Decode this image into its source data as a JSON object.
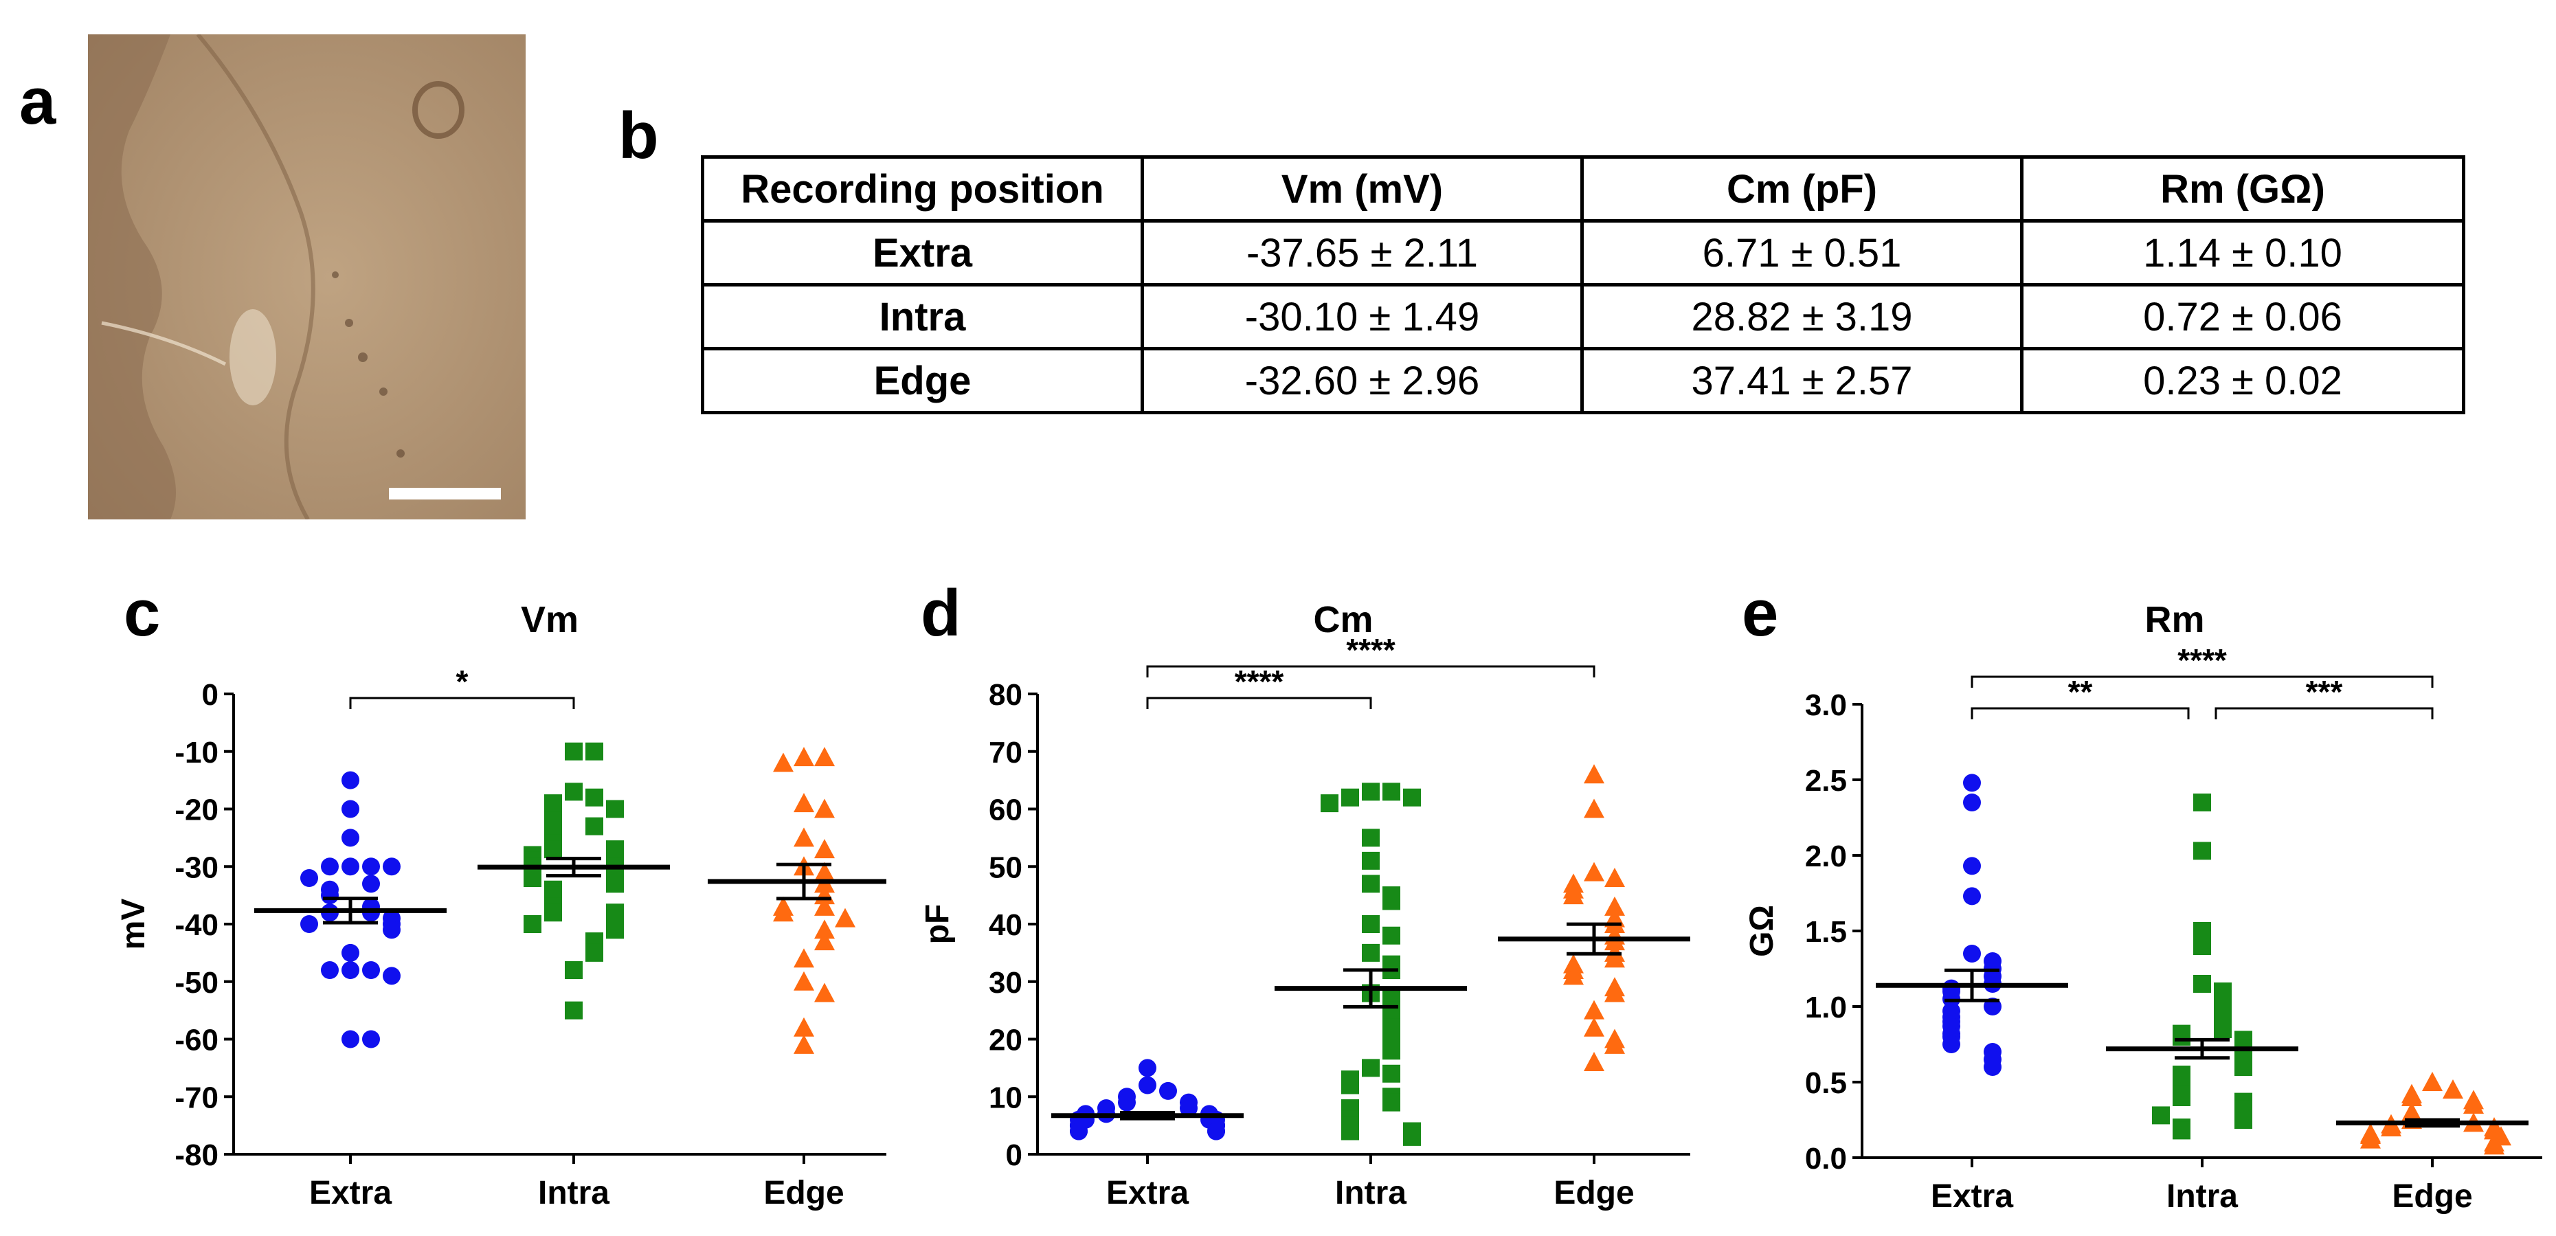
{
  "panels": {
    "a": "a",
    "b": "b",
    "c": "c",
    "d": "d",
    "e": "e"
  },
  "micrograph": {
    "background_color": "#b39676",
    "scale_bar_color": "#ffffff"
  },
  "table": {
    "headers": [
      "Recording position",
      "Vm (mV)",
      "Cm (pF)",
      "Rm (GΩ)"
    ],
    "rows": [
      [
        "Extra",
        "-37.65 ± 2.11",
        "6.71 ± 0.51",
        "1.14 ± 0.10"
      ],
      [
        "Intra",
        "-30.10 ± 1.49",
        "28.82 ± 3.19",
        "0.72 ± 0.06"
      ],
      [
        "Edge",
        "-32.60 ± 2.96",
        "37.41 ± 2.57",
        "0.23 ± 0.02"
      ]
    ]
  },
  "colors": {
    "Extra": "#1010ee",
    "Intra": "#178a17",
    "Edge": "#ff6a10"
  },
  "chart_data": [
    {
      "type": "scatter",
      "id": "c",
      "title": "Vm",
      "ylabel": "mV",
      "xlabel": "",
      "categories": [
        "Extra",
        "Intra",
        "Edge"
      ],
      "markers": [
        "circle",
        "square",
        "triangle"
      ],
      "ylim": [
        -80,
        0
      ],
      "yticks": [
        0,
        -10,
        -20,
        -30,
        -40,
        -50,
        -60,
        -70,
        -80
      ],
      "ytick_labels": [
        "0",
        "-10",
        "-20",
        "-30",
        "-40",
        "-50",
        "-60",
        "-70",
        "-80"
      ],
      "series": [
        {
          "name": "Extra",
          "mean": -37.65,
          "sem": 2.11,
          "values": [
            -15,
            -20,
            -25,
            -30,
            -30,
            -30,
            -30,
            -32,
            -33,
            -34,
            -35,
            -37,
            -38,
            -38,
            -39,
            -40,
            -40,
            -41,
            -45,
            -48,
            -48,
            -48,
            -49,
            -60,
            -60
          ]
        },
        {
          "name": "Intra",
          "mean": -30.1,
          "sem": 1.49,
          "values": [
            -10,
            -10,
            -17,
            -18,
            -19,
            -20,
            -20,
            -22,
            -23,
            -24,
            -25,
            -26,
            -27,
            -27,
            -28,
            -28,
            -29,
            -30,
            -30,
            -31,
            -31,
            -32,
            -33,
            -34,
            -35,
            -36,
            -37,
            -38,
            -38,
            -39,
            -40,
            -40,
            -41,
            -43,
            -45,
            -48,
            -55
          ]
        },
        {
          "name": "Edge",
          "mean": -32.6,
          "sem": 2.96,
          "values": [
            -11,
            -11,
            -12,
            -19,
            -20,
            -25,
            -27,
            -30,
            -31,
            -33,
            -35,
            -37,
            -37,
            -38,
            -39,
            -41,
            -43,
            -46,
            -50,
            -52,
            -58,
            -61
          ]
        }
      ],
      "comparisons": [
        {
          "from": 0,
          "to": 1,
          "label": "*"
        }
      ]
    },
    {
      "type": "scatter",
      "id": "d",
      "title": "Cm",
      "ylabel": "pF",
      "xlabel": "",
      "categories": [
        "Extra",
        "Intra",
        "Edge"
      ],
      "markers": [
        "circle",
        "square",
        "triangle"
      ],
      "ylim": [
        0,
        80
      ],
      "yticks": [
        0,
        10,
        20,
        30,
        40,
        50,
        60,
        70,
        80
      ],
      "ytick_labels": [
        "0",
        "10",
        "20",
        "30",
        "40",
        "50",
        "60",
        "70",
        "80"
      ],
      "series": [
        {
          "name": "Extra",
          "mean": 6.71,
          "sem": 0.51,
          "values": [
            15,
            12,
            11,
            10,
            9,
            9,
            8,
            8,
            7,
            7,
            7,
            6,
            6,
            6,
            6,
            5,
            5,
            5,
            5,
            5,
            5,
            4,
            4,
            4,
            4
          ]
        },
        {
          "name": "Intra",
          "mean": 28.82,
          "sem": 3.19,
          "values": [
            63,
            63,
            62,
            62,
            61,
            55,
            51,
            47,
            45,
            44,
            40,
            38,
            35,
            33,
            32,
            28,
            27,
            25,
            23,
            22,
            20,
            18,
            15,
            14,
            13,
            12,
            10,
            9,
            8,
            7,
            6,
            5,
            4,
            4,
            3
          ]
        },
        {
          "name": "Edge",
          "mean": 37.41,
          "sem": 2.57,
          "values": [
            66,
            60,
            49,
            48,
            47,
            46,
            45,
            43,
            41,
            40,
            38,
            37,
            35,
            34,
            33,
            32,
            31,
            29,
            28,
            25,
            22,
            20,
            19,
            16
          ]
        }
      ],
      "comparisons": [
        {
          "from": 0,
          "to": 1,
          "label": "****"
        },
        {
          "from": 0,
          "to": 2,
          "label": "****"
        }
      ]
    },
    {
      "type": "scatter",
      "id": "e",
      "title": "Rm",
      "ylabel": "GΩ",
      "xlabel": "",
      "categories": [
        "Extra",
        "Intra",
        "Edge"
      ],
      "markers": [
        "circle",
        "square",
        "triangle"
      ],
      "ylim": [
        0,
        3.0
      ],
      "yticks": [
        0,
        0.5,
        1.0,
        1.5,
        2.0,
        2.5,
        3.0
      ],
      "ytick_labels": [
        "0.0",
        "0.5",
        "1.0",
        "1.5",
        "2.0",
        "2.5",
        "3.0"
      ],
      "series": [
        {
          "name": "Extra",
          "mean": 1.14,
          "sem": 0.1,
          "values": [
            2.48,
            2.35,
            1.93,
            1.73,
            1.35,
            1.3,
            1.25,
            1.2,
            1.15,
            1.12,
            1.1,
            1.05,
            1.0,
            0.97,
            0.93,
            0.9,
            0.87,
            0.82,
            0.8,
            0.75,
            0.7,
            0.65,
            0.6
          ]
        },
        {
          "name": "Intra",
          "mean": 0.72,
          "sem": 0.06,
          "values": [
            2.35,
            2.03,
            1.5,
            1.4,
            1.15,
            1.1,
            1.05,
            1.0,
            0.95,
            0.9,
            0.85,
            0.82,
            0.8,
            0.78,
            0.75,
            0.72,
            0.7,
            0.68,
            0.65,
            0.62,
            0.6,
            0.55,
            0.52,
            0.5,
            0.45,
            0.42,
            0.4,
            0.37,
            0.35,
            0.32,
            0.3,
            0.28,
            0.25,
            0.2,
            0.18
          ]
        },
        {
          "name": "Edge",
          "mean": 0.23,
          "sem": 0.02,
          "values": [
            0.5,
            0.45,
            0.42,
            0.4,
            0.38,
            0.35,
            0.3,
            0.28,
            0.25,
            0.23,
            0.22,
            0.2,
            0.2,
            0.18,
            0.16,
            0.15,
            0.14,
            0.12,
            0.1,
            0.08
          ]
        }
      ],
      "comparisons": [
        {
          "from": 0,
          "to": 1,
          "label": "**"
        },
        {
          "from": 1,
          "to": 2,
          "label": "***"
        },
        {
          "from": 0,
          "to": 2,
          "label": "****"
        }
      ]
    }
  ]
}
